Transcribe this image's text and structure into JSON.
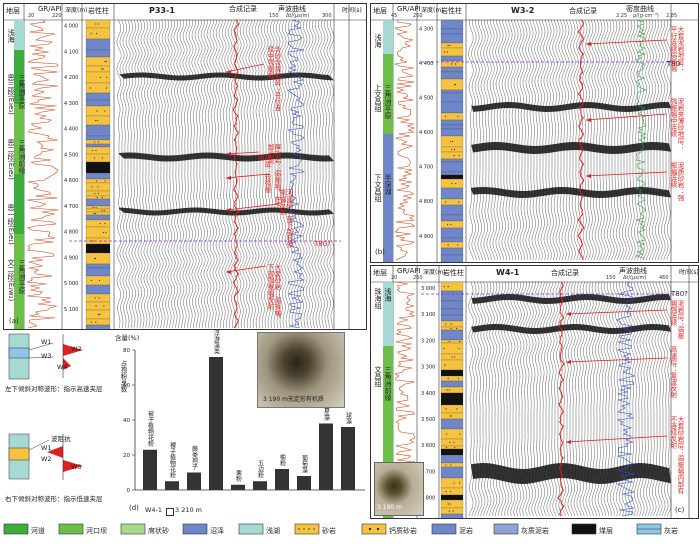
{
  "panel_a": {
    "tag": "(a)",
    "col_headers": [
      "地层",
      "GR/API",
      "深度(m)",
      "岩性柱",
      "P33-1",
      "合成记录",
      "声波曲线",
      "时间(s)"
    ],
    "gr_range": [
      "20",
      "220"
    ],
    "ac_range": [
      "150",
      "300"
    ],
    "ac_unit": "Δt/(μs/m)",
    "depth_ticks": [
      "4 000",
      "4 100",
      "4 200",
      "4 300",
      "4 400",
      "4 500",
      "4 600",
      "4 700",
      "4 800",
      "4 900",
      "5 000",
      "5 100"
    ],
    "time_ticks": [
      "2.8",
      "2.9",
      "3.0",
      "3.1",
      "3.2"
    ],
    "strata": [
      "浅海",
      "恩三段(E₃e₃)",
      "三角洲平原",
      "恩二段(E₂e₂)",
      "三角洲前缘",
      "恩一段(E₂e₁)",
      "文二段(E₂w₂)",
      "三角洲平原"
    ],
    "horizon": "T80?",
    "annotations": [
      "含砂含煤地层：平行连续中强振幅",
      "煤层：较强振幅",
      "厚砂岩：弱振幅，在下部出现",
      "河道砂：在下部较强振幅反射",
      "大套砂岩：弱振幅，下部强振幅反射"
    ]
  },
  "panel_b": {
    "tag": "(b)",
    "col_headers": [
      "地层",
      "GR/API",
      "深度(m)",
      "岩性柱",
      "W3-2",
      "合成记录",
      "密度曲线"
    ],
    "gr_range": [
      "45",
      "260"
    ],
    "den_range": [
      "2.25",
      "2.85"
    ],
    "den_unit": "ρ/(g·cm⁻³)",
    "depth_ticks": [
      "4 300",
      "4 400",
      "4 500",
      "4 600",
      "4 700",
      "4 800",
      "4 900"
    ],
    "strata": [
      "浅海",
      "上文昌组",
      "三角洲平原",
      "下文昌组",
      "半深湖"
    ],
    "horizon": "T80",
    "annotations": [
      "大套泥岩地层：平行连续弱振幅",
      "泥岩夹薄砂地层：强振幅中连续",
      "泥质砂岩：强振幅连续"
    ]
  },
  "panel_c": {
    "tag": "(c)",
    "col_headers": [
      "地层",
      "GR/API",
      "深度(m)",
      "岩性柱",
      "W4-1",
      "合成记录",
      "声波曲线",
      "时间(s)"
    ],
    "gr_range": [
      "20",
      "260"
    ],
    "ac_range": [
      "150",
      "460"
    ],
    "ac_unit": "Δt/(μs/m)",
    "depth_ticks": [
      "3 000",
      "3 100",
      "3 200",
      "3 300",
      "3 400",
      "3 500",
      "3 600",
      "3 700",
      "3 800"
    ],
    "strata": [
      "珠海组",
      "浅海",
      "文昌组",
      "三角洲前缘"
    ],
    "horizon": "T80?",
    "annotations": [
      "泥岩层：弱振幅强连续",
      "高速层：复波反射",
      "大套砂岩层：弱振幅内部有不连续反射"
    ],
    "photo_caption": "3 190 m"
  },
  "wavelet": {
    "top_labels": [
      "W1",
      "W2",
      "W3",
      "W4"
    ],
    "top_caption": "左下倾斜对称波形：指示高速夹层",
    "bot_labels": [
      "W1",
      "W2",
      "W3"
    ],
    "bot_wave_label": "波阻抗",
    "bot_caption": "右下倾斜对称波形：指示低速夹层"
  },
  "panel_d": {
    "tag": "(d)",
    "ylabel_unit": "含量(%)",
    "ylabel": "占孢粉总数",
    "y_ticks": [
      "80",
      "60",
      "40",
      "20",
      "0"
    ],
    "well_label": "W4-1",
    "depth_label": "3 210 m",
    "photo_caption": "3 190 m无定形有机质",
    "chart_data": {
      "type": "bar",
      "ylim": [
        0,
        80
      ],
      "categories": [
        "被子植物花粉",
        "裸子植物花粉",
        "蕨类孢子",
        "浮游藻类",
        "栗粉",
        "五边粉",
        "榆粉",
        "葡萄藻",
        "盘星藻",
        "球藻"
      ],
      "values": [
        23,
        5,
        10,
        76,
        3,
        5,
        12,
        8,
        38,
        36
      ]
    }
  },
  "legend": [
    {
      "label": "河道",
      "color": "#3cac3c"
    },
    {
      "label": "河口坝",
      "color": "#6cc04a"
    },
    {
      "label": "席状砂",
      "color": "#a6d98a"
    },
    {
      "label": "沼泽",
      "color": "#6f86c8"
    },
    {
      "label": "浅湖",
      "color": "#a7d9d4"
    },
    {
      "label": "砂岩",
      "color": "#f6c341"
    },
    {
      "label": "钙质砂岩",
      "color": "#f6c341"
    },
    {
      "label": "泥岩",
      "color": "#6f86c8"
    },
    {
      "label": "灰质泥岩",
      "color": "#8ea4d4"
    },
    {
      "label": "煤层",
      "color": "#111111"
    },
    {
      "label": "灰岩",
      "color": "#8ec6e6"
    }
  ]
}
